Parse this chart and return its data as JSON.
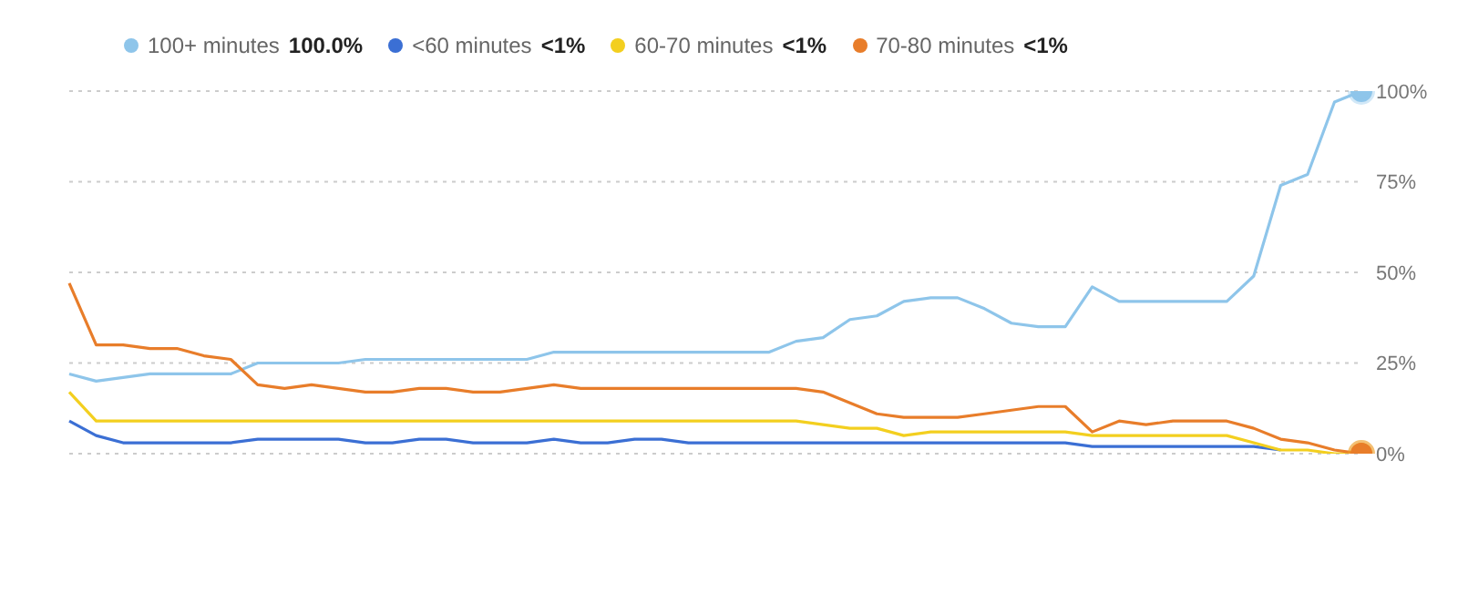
{
  "chart_data": {
    "type": "line",
    "categories": [
      null,
      null,
      null,
      null,
      null,
      null,
      null,
      null,
      null,
      null,
      null,
      null,
      null,
      null,
      null,
      null,
      null,
      null,
      null,
      null,
      null,
      null,
      null,
      null,
      null,
      null,
      null,
      null,
      null,
      null,
      null,
      null,
      null,
      null,
      null,
      null,
      null,
      null,
      null,
      null,
      null,
      null,
      null,
      null,
      null,
      null,
      null,
      null,
      null
    ],
    "series": [
      {
        "name": "100+ minutes",
        "color": "#8ec5ea",
        "values": [
          22,
          20,
          21,
          22,
          22,
          22,
          22,
          25,
          25,
          25,
          25,
          26,
          26,
          26,
          26,
          26,
          26,
          26,
          28,
          28,
          28,
          28,
          28,
          28,
          28,
          28,
          28,
          31,
          32,
          37,
          38,
          42,
          43,
          43,
          40,
          36,
          35,
          35,
          46,
          42,
          42,
          42,
          42,
          42,
          49,
          74,
          77,
          97,
          100
        ]
      },
      {
        "name": "<60 minutes",
        "color": "#3b6fd4",
        "values": [
          9,
          5,
          3,
          3,
          3,
          3,
          3,
          4,
          4,
          4,
          4,
          3,
          3,
          4,
          4,
          3,
          3,
          3,
          4,
          3,
          3,
          4,
          4,
          3,
          3,
          3,
          3,
          3,
          3,
          3,
          3,
          3,
          3,
          3,
          3,
          3,
          3,
          3,
          2,
          2,
          2,
          2,
          2,
          2,
          2,
          1,
          null,
          null,
          null
        ]
      },
      {
        "name": "60-70 minutes",
        "color": "#f3cf1f",
        "values": [
          17,
          9,
          9,
          9,
          9,
          9,
          9,
          9,
          9,
          9,
          9,
          9,
          9,
          9,
          9,
          9,
          9,
          9,
          9,
          9,
          9,
          9,
          9,
          9,
          9,
          9,
          9,
          9,
          8,
          7,
          7,
          5,
          6,
          6,
          6,
          6,
          6,
          6,
          5,
          5,
          5,
          5,
          5,
          5,
          3,
          1,
          1,
          0,
          0
        ]
      },
      {
        "name": "70-80 minutes",
        "color": "#e87d2a",
        "values": [
          47,
          30,
          30,
          29,
          29,
          27,
          26,
          19,
          18,
          19,
          18,
          17,
          17,
          18,
          18,
          17,
          17,
          18,
          19,
          18,
          18,
          18,
          18,
          18,
          18,
          18,
          18,
          18,
          17,
          14,
          11,
          10,
          10,
          10,
          11,
          12,
          13,
          13,
          6,
          9,
          8,
          9,
          9,
          9,
          7,
          4,
          3,
          1,
          0
        ]
      }
    ],
    "annotations": [
      "100.0%",
      "<1%",
      "<1%",
      "<1%"
    ],
    "ylim": [
      0,
      100
    ],
    "yticks": [
      {
        "value": 0,
        "label": "0%"
      },
      {
        "value": 25,
        "label": "25%"
      },
      {
        "value": 50,
        "label": "50%"
      },
      {
        "value": 75,
        "label": "75%"
      },
      {
        "value": 100,
        "label": "100%"
      }
    ],
    "grid": "y",
    "legend": "top left"
  }
}
